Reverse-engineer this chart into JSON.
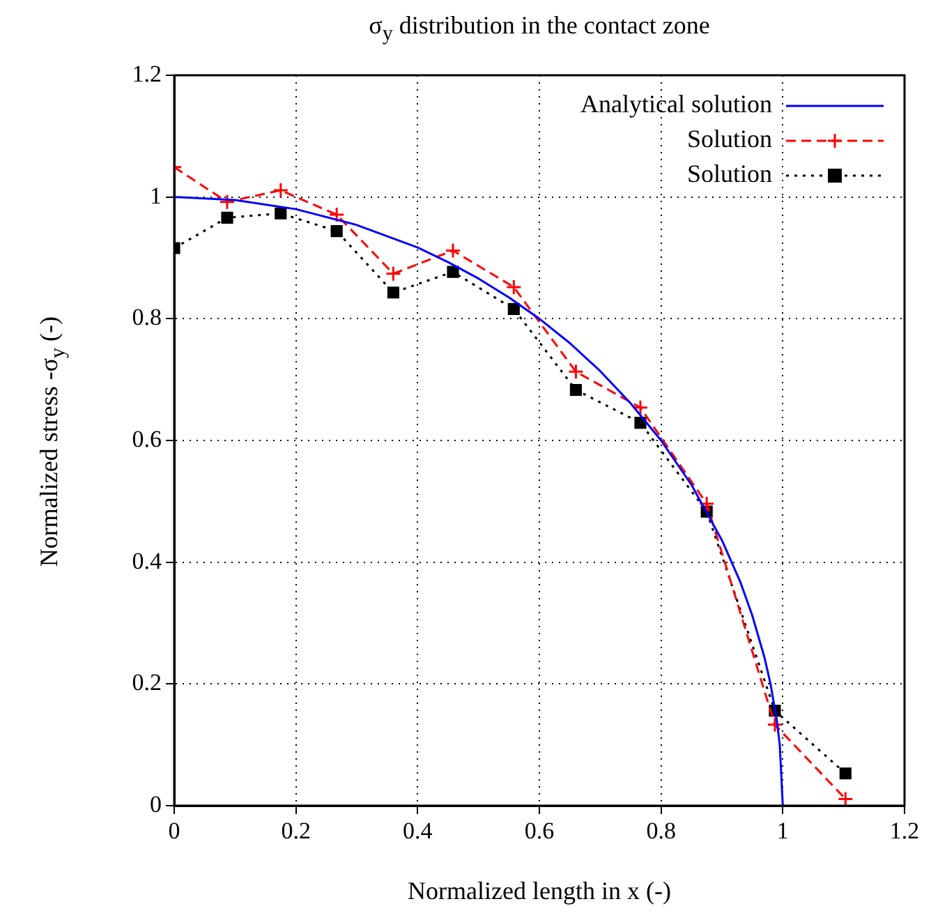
{
  "chart_data": {
    "type": "line",
    "title": "σ$_{y}$ distribution in the contact zone",
    "xlabel": "Normalized length in x (-)",
    "ylabel": "Normalized stress -σ$_{y}$ (-)",
    "xlim": [
      0,
      1.2
    ],
    "xticks": [
      0,
      0.2,
      0.4,
      0.6,
      0.8,
      1,
      1.2
    ],
    "ylim": [
      0,
      1.2
    ],
    "yticks": [
      0,
      0.2,
      0.4,
      0.6,
      0.8,
      1,
      1.2
    ],
    "grid": true,
    "legend": "top right",
    "series": [
      {
        "name": "Analytical solution",
        "color": "#0000ff",
        "marker": "none",
        "line_style": "solid",
        "x": [
          0,
          0.1,
          0.2,
          0.3,
          0.4,
          0.45,
          0.5,
          0.55,
          0.6,
          0.65,
          0.7,
          0.75,
          0.8,
          0.85,
          0.9,
          0.93,
          0.95,
          0.97,
          0.98,
          0.99,
          0.995,
          1
        ],
        "values": [
          1,
          0.995,
          0.98,
          0.954,
          0.917,
          0.893,
          0.866,
          0.835,
          0.8,
          0.76,
          0.714,
          0.661,
          0.6,
          0.527,
          0.436,
          0.368,
          0.312,
          0.243,
          0.199,
          0.141,
          0.1,
          0
        ]
      },
      {
        "name": "Solution",
        "color": "#ff0000",
        "marker": "cross",
        "line_style": "dashed",
        "x": [
          0,
          0.087,
          0.175,
          0.267,
          0.36,
          0.458,
          0.558,
          0.66,
          0.766,
          0.875,
          0.987,
          1.103
        ],
        "values": [
          1.049,
          0.992,
          1.011,
          0.971,
          0.874,
          0.912,
          0.852,
          0.713,
          0.654,
          0.496,
          0.133,
          0.011
        ]
      },
      {
        "name": "Solution",
        "color": "#000000",
        "marker": "square",
        "line_style": "dotted",
        "x": [
          0,
          0.087,
          0.175,
          0.267,
          0.36,
          0.458,
          0.558,
          0.66,
          0.766,
          0.875,
          0.987,
          1.103
        ],
        "values": [
          0.916,
          0.966,
          0.973,
          0.944,
          0.843,
          0.877,
          0.816,
          0.683,
          0.629,
          0.483,
          0.156,
          0.053
        ]
      }
    ]
  }
}
